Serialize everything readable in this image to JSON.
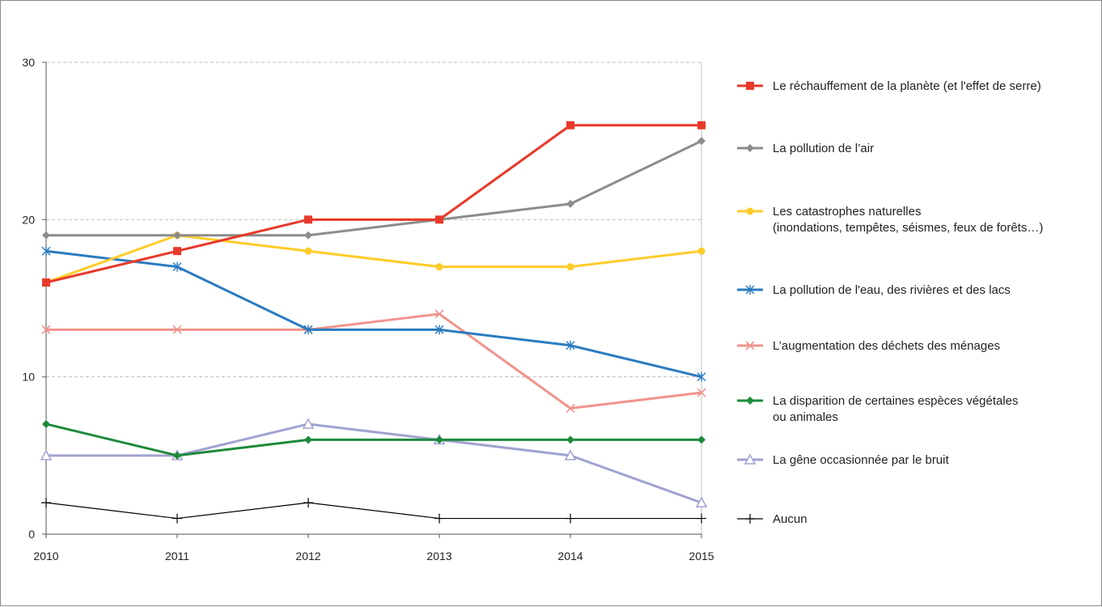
{
  "chart_data": {
    "type": "line",
    "x": [
      "2010",
      "2011",
      "2012",
      "2013",
      "2014",
      "2015"
    ],
    "ylim": [
      0,
      30
    ],
    "yticks": [
      "0",
      "10",
      "20",
      "30"
    ],
    "grid": true,
    "legend_position": "right",
    "series": [
      {
        "name": "Le réchauffement de la planète (et l'effet de serre)",
        "name_lines": [
          "Le réchauffement de la planète (et l'effet de serre)"
        ],
        "values": [
          16,
          18,
          20,
          20,
          26,
          26
        ],
        "color": "#e8392a",
        "marker": "square",
        "width": 3
      },
      {
        "name": "La pollution de l’air",
        "name_lines": [
          "La pollution de l’air"
        ],
        "values": [
          19,
          19,
          19,
          20,
          21,
          25
        ],
        "color": "#8c8c8c",
        "marker": "diamond",
        "width": 3
      },
      {
        "name": "Les catastrophes naturelles (inondations, tempêtes, séismes, feux de forêts…)",
        "name_lines": [
          "Les catastrophes naturelles",
          "(inondations, tempêtes, séismes, feux de forêts…)"
        ],
        "values": [
          16,
          19,
          18,
          17,
          17,
          18
        ],
        "color": "#ffcc29",
        "marker": "circle",
        "width": 3
      },
      {
        "name": "La pollution de l'eau, des rivières et des lacs",
        "name_lines": [
          "La pollution de l'eau, des rivières et des lacs"
        ],
        "values": [
          18,
          17,
          13,
          13,
          12,
          10
        ],
        "color": "#2b7bbf",
        "marker": "star",
        "width": 3
      },
      {
        "name": "L’augmentation des déchets des ménages",
        "name_lines": [
          "L’augmentation des déchets des ménages"
        ],
        "values": [
          13,
          13,
          13,
          14,
          8,
          9
        ],
        "color": "#f0948c",
        "marker": "x",
        "width": 3
      },
      {
        "name": "La disparition de certaines espèces végétales ou animales",
        "name_lines": [
          "La disparition de certaines espèces végétales",
          "ou animales"
        ],
        "values": [
          7,
          5,
          6,
          6,
          6,
          6
        ],
        "color": "#1e8a3c",
        "marker": "diamond",
        "width": 3
      },
      {
        "name": "La gêne occasionnée par le bruit",
        "name_lines": [
          "La gêne occasionnée par le bruit"
        ],
        "values": [
          5,
          5,
          7,
          6,
          5,
          2
        ],
        "color": "#a0a3d0",
        "marker": "triangle",
        "width": 3
      },
      {
        "name": "Aucun",
        "name_lines": [
          "Aucun"
        ],
        "values": [
          2,
          1,
          2,
          1,
          1,
          1
        ],
        "color": "#000000",
        "marker": "plus",
        "width": 1.2
      }
    ]
  }
}
